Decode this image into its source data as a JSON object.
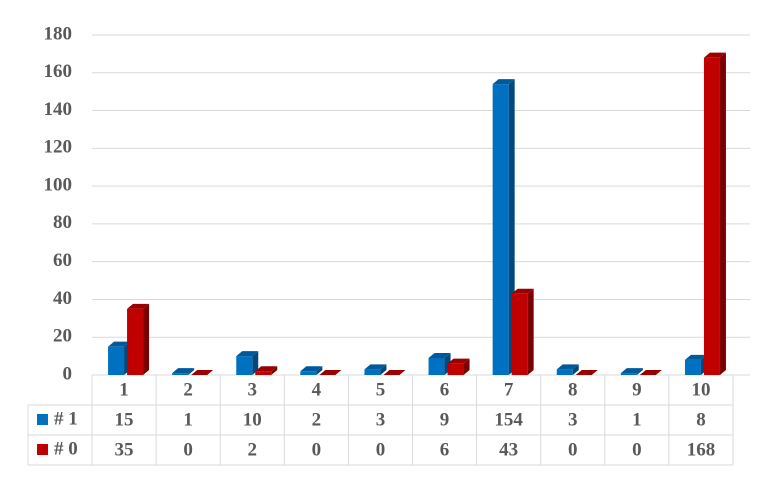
{
  "chart_data": {
    "type": "bar3d",
    "categories": [
      "1",
      "2",
      "3",
      "4",
      "5",
      "6",
      "7",
      "8",
      "9",
      "10"
    ],
    "series": [
      {
        "name": "# 1",
        "color": "#0070c0",
        "values": [
          15,
          1,
          10,
          2,
          3,
          9,
          154,
          3,
          1,
          8
        ]
      },
      {
        "name": "# 0",
        "color": "#c00000",
        "values": [
          35,
          0,
          2,
          0,
          0,
          6,
          43,
          0,
          0,
          168
        ]
      }
    ],
    "ylim": [
      0,
      180
    ],
    "yticks": [
      0,
      20,
      40,
      60,
      80,
      100,
      120,
      140,
      160,
      180
    ],
    "grid": true
  }
}
